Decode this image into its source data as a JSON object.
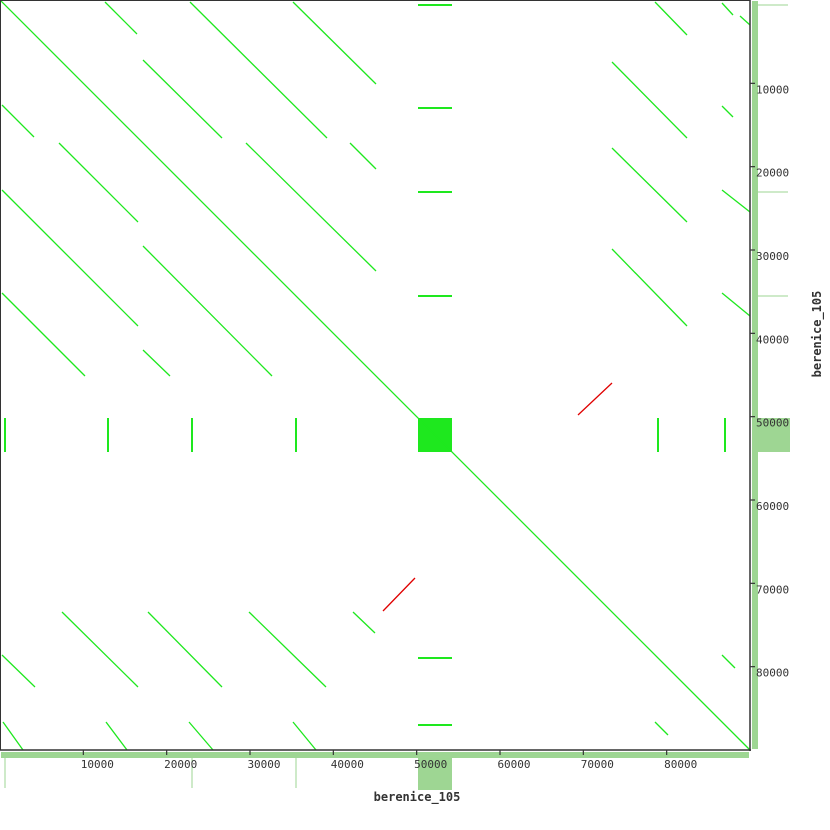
{
  "chart_data": {
    "type": "dotplot",
    "title": "",
    "xlabel": "berenice_105",
    "ylabel": "berenice_105",
    "xlim": [
      0,
      90000
    ],
    "ylim": [
      0,
      90000
    ],
    "y_direction": "top-to-bottom",
    "grid": false,
    "x_ticks": [
      "10000",
      "20000",
      "30000",
      "40000",
      "50000",
      "60000",
      "70000",
      "80000"
    ],
    "y_ticks": [
      "10000",
      "20000",
      "30000",
      "40000",
      "50000",
      "60000",
      "70000",
      "80000"
    ],
    "colors": {
      "forward": "#1ee81e",
      "reverse": "#e00000",
      "coverage": "#9ed693",
      "axis": "#333333"
    },
    "forward_segments": [
      [
        0,
        0,
        90000,
        90000
      ],
      [
        12600,
        240,
        16440,
        4080
      ],
      [
        22800,
        240,
        39240,
        16560
      ],
      [
        35160,
        240,
        45120,
        10080
      ],
      [
        240,
        12600,
        4080,
        16440
      ],
      [
        17160,
        7200,
        26640,
        16560
      ],
      [
        7080,
        17160,
        16560,
        26640
      ],
      [
        29520,
        17160,
        45120,
        32520
      ],
      [
        42000,
        17160,
        45120,
        20280
      ],
      [
        240,
        22800,
        16560,
        39120
      ],
      [
        17160,
        29520,
        32640,
        45120
      ],
      [
        240,
        35160,
        10200,
        45120
      ],
      [
        17160,
        42000,
        20400,
        45120
      ],
      [
        78600,
        240,
        82440,
        4200
      ],
      [
        86640,
        360,
        87960,
        1800
      ],
      [
        88800,
        1920,
        90000,
        3000
      ],
      [
        73440,
        7440,
        82440,
        16560
      ],
      [
        86640,
        12720,
        87960,
        14040
      ],
      [
        73440,
        17760,
        82440,
        26640
      ],
      [
        86640,
        22800,
        90000,
        25440
      ],
      [
        73440,
        29880,
        82440,
        39120
      ],
      [
        86640,
        35160,
        90000,
        37920
      ],
      [
        7440,
        73440,
        16560,
        82440
      ],
      [
        17760,
        73440,
        26640,
        82440
      ],
      [
        29880,
        73440,
        39120,
        82440
      ],
      [
        42360,
        73440,
        45000,
        75960
      ],
      [
        240,
        78600,
        4200,
        82440
      ],
      [
        360,
        86640,
        2760,
        90000
      ],
      [
        12720,
        86640,
        15240,
        90000
      ],
      [
        22680,
        86640,
        25560,
        90000
      ],
      [
        35160,
        86640,
        37920,
        90000
      ],
      [
        78600,
        86640,
        80160,
        88200
      ],
      [
        86640,
        78600,
        88200,
        80160
      ]
    ],
    "reverse_segments": [
      [
        45960,
        73320,
        49800,
        69360
      ],
      [
        69360,
        49800,
        73440,
        45960
      ]
    ],
    "dense_block": [
      50160,
      54240
    ],
    "stripe_positions": [
      600,
      12960,
      23040,
      35520,
      78960,
      87000
    ],
    "coverage_peaks": [
      600,
      23040,
      35520
    ]
  }
}
